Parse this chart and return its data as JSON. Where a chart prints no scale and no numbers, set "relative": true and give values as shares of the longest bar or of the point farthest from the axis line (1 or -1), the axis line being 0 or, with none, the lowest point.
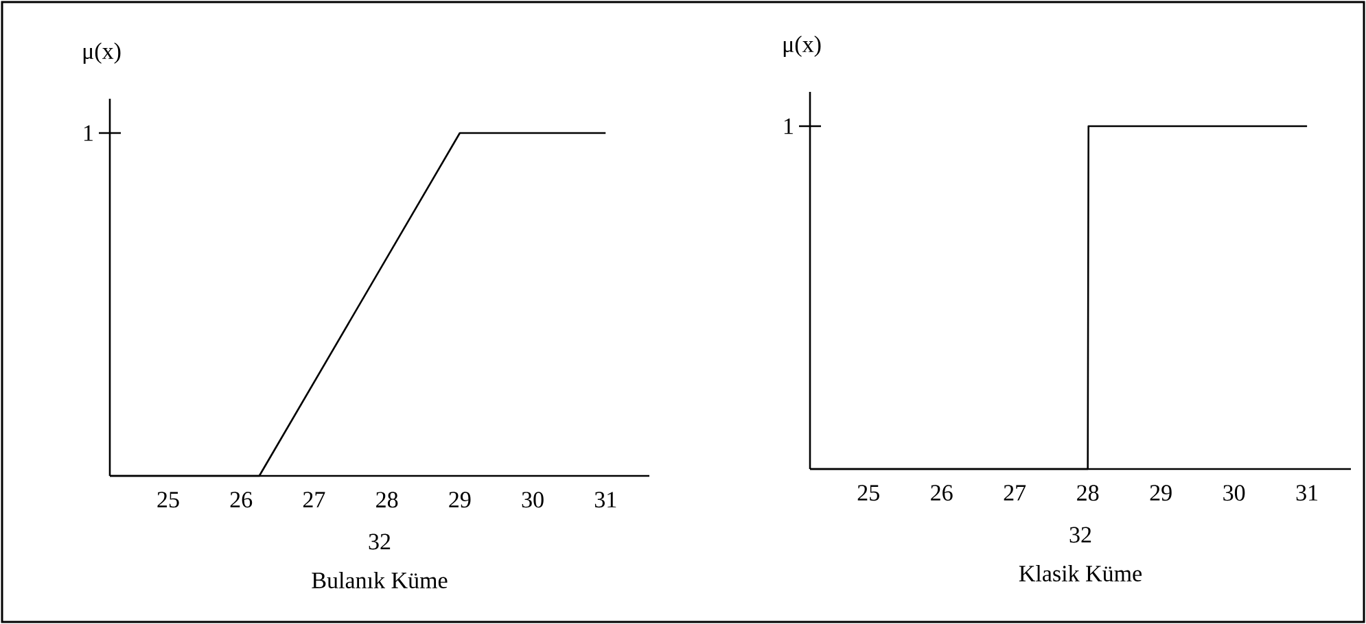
{
  "chart_data": [
    {
      "type": "line",
      "relative": true,
      "ylabel": "μ(x)",
      "xlabel": "Bulanık Küme",
      "annotations": [
        "1",
        "32"
      ],
      "x": [
        24.2,
        26.25,
        29,
        31
      ],
      "values": [
        0,
        0,
        1,
        1
      ],
      "color": "#000000",
      "xlim": [
        24.2,
        31.6
      ],
      "xticks": [
        25,
        26,
        27,
        28,
        29,
        30,
        31
      ]
    },
    {
      "type": "line",
      "relative": true,
      "ylabel": "μ(x)",
      "xlabel": "Klasik Küme",
      "annotations": [
        "1",
        "32"
      ],
      "x": [
        24.2,
        28,
        28.01,
        31
      ],
      "values": [
        0,
        0,
        1,
        1
      ],
      "color": "#000000",
      "xlim": [
        24.2,
        31.6
      ],
      "xticks": [
        25,
        26,
        27,
        28,
        29,
        30,
        31
      ]
    }
  ]
}
